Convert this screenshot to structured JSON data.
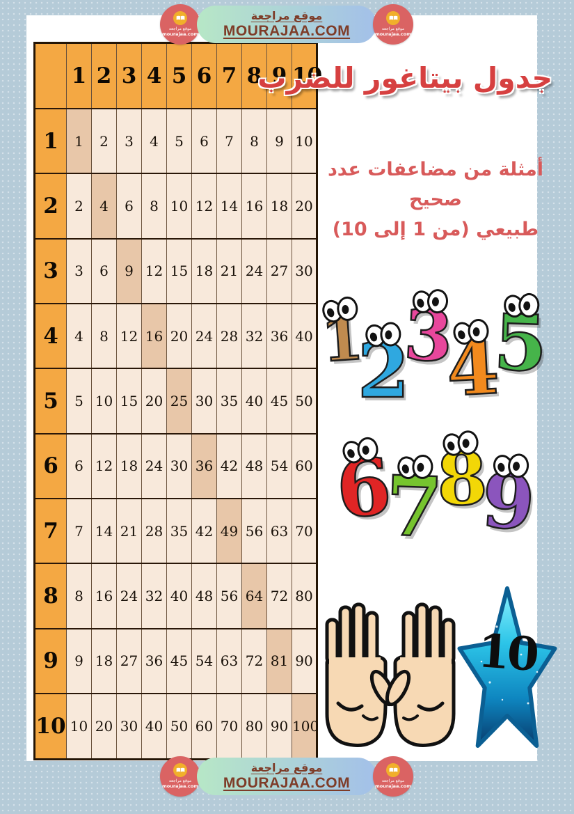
{
  "banner": {
    "site_name_ar": "موقع مراجعة",
    "site_domain": "MOURAJAA.COM"
  },
  "logo": {
    "icon": "open-book-icon",
    "name_ar": "موقع مراجعة",
    "domain": "mourajaa.com"
  },
  "title_ar": "جدول بيتاغور للضرب",
  "subtitle": {
    "line1": "أمثلة من مضاعفات عدد صحيح",
    "line2": "طبيعي (من 1 إلى 10)"
  },
  "table": {
    "corner": "",
    "column_headers": [
      "1",
      "2",
      "3",
      "4",
      "5",
      "6",
      "7",
      "8",
      "9",
      "10"
    ],
    "rows": [
      {
        "header": "1",
        "cells": [
          1,
          2,
          3,
          4,
          5,
          6,
          7,
          8,
          9,
          10
        ]
      },
      {
        "header": "2",
        "cells": [
          2,
          4,
          6,
          8,
          10,
          12,
          14,
          16,
          18,
          20
        ]
      },
      {
        "header": "3",
        "cells": [
          3,
          6,
          9,
          12,
          15,
          18,
          21,
          24,
          27,
          30
        ]
      },
      {
        "header": "4",
        "cells": [
          4,
          8,
          12,
          16,
          20,
          24,
          28,
          32,
          36,
          40
        ]
      },
      {
        "header": "5",
        "cells": [
          5,
          10,
          15,
          20,
          25,
          30,
          35,
          40,
          45,
          50
        ]
      },
      {
        "header": "6",
        "cells": [
          6,
          12,
          18,
          24,
          30,
          36,
          42,
          48,
          54,
          60
        ]
      },
      {
        "header": "7",
        "cells": [
          7,
          14,
          21,
          28,
          35,
          42,
          49,
          56,
          63,
          70
        ]
      },
      {
        "header": "8",
        "cells": [
          8,
          16,
          24,
          32,
          40,
          48,
          56,
          64,
          72,
          80
        ]
      },
      {
        "header": "9",
        "cells": [
          9,
          18,
          27,
          36,
          45,
          54,
          63,
          72,
          81,
          90
        ]
      },
      {
        "header": "10",
        "cells": [
          10,
          20,
          30,
          40,
          50,
          60,
          70,
          80,
          90,
          100
        ]
      }
    ],
    "highlight_rule": "diagonal-perfect-squares",
    "colors": {
      "header_bg": "#f4a843",
      "cell_bg": "#f8e9db",
      "diagonal_bg": "#e8c7a9",
      "border": "#241505"
    }
  },
  "numbers_art": [
    {
      "value": "1",
      "color": "#c08b4f"
    },
    {
      "value": "2",
      "color": "#2fa8e0"
    },
    {
      "value": "3",
      "color": "#e8479c"
    },
    {
      "value": "4",
      "color": "#f28a1e"
    },
    {
      "value": "5",
      "color": "#46b44a"
    },
    {
      "value": "6",
      "color": "#e02525"
    },
    {
      "value": "7",
      "color": "#76c42e"
    },
    {
      "value": "8",
      "color": "#f2d707"
    },
    {
      "value": "9",
      "color": "#8b55bd"
    }
  ],
  "ten": {
    "value": "10",
    "icons": [
      "two-open-hands-icon",
      "blue-star-icon"
    ],
    "star_gradient": [
      "#8df3ff",
      "#2cc4e8",
      "#0e86c0",
      "#083a6b"
    ]
  },
  "colors": {
    "canvas_bg": "#b5cbd8",
    "page_bg": "#ffffff",
    "title_red": "#d64040",
    "banner_text_brown": "#7e3c28",
    "pill_gradient": [
      "#b7e7c6",
      "#a3c0e9"
    ],
    "logo_red": "#da6363",
    "logo_yellow": "#f1af2b"
  }
}
